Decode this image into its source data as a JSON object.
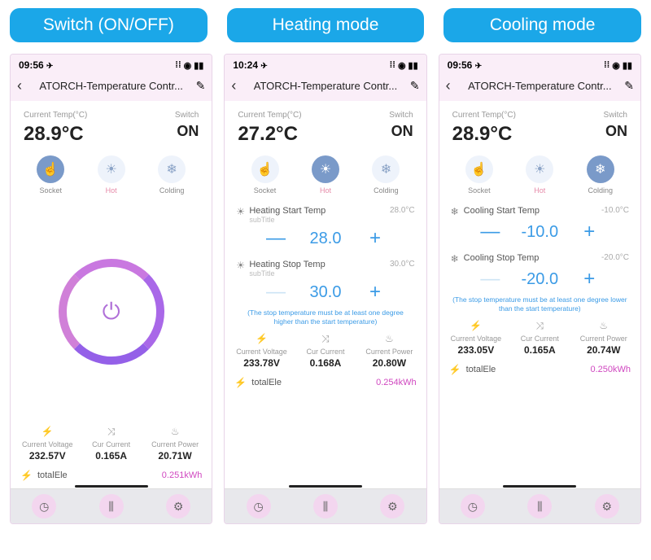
{
  "colors": {
    "tab_bg": "#1ba7e8",
    "accent_blue": "#3b9be6",
    "accent_pink": "#d048c0"
  },
  "tabs": [
    {
      "label": "Switch (ON/OFF)"
    },
    {
      "label": "Heating mode"
    },
    {
      "label": "Cooling mode"
    }
  ],
  "app_title": "ATORCH-Temperature Contr...",
  "phones": [
    {
      "time": "09:56",
      "temp_label": "Current Temp(°C)",
      "temp": "28.9°C",
      "switch_label": "Switch",
      "switch": "ON",
      "modes": {
        "socket": "Socket",
        "hot": "Hot",
        "colding": "Colding",
        "active": "socket"
      },
      "metrics": {
        "voltage_label": "Current Voltage",
        "voltage": "232.57V",
        "current_label": "Cur Current",
        "current": "0.165A",
        "power_label": "Current Power",
        "power": "20.71W"
      },
      "total_label": "totalEle",
      "total": "0.251kWh"
    },
    {
      "time": "10:24",
      "temp_label": "Current Temp(°C)",
      "temp": "27.2°C",
      "switch_label": "Switch",
      "switch": "ON",
      "modes": {
        "socket": "Socket",
        "hot": "Hot",
        "colding": "Colding",
        "active": "hot"
      },
      "settings": [
        {
          "icon": "☀",
          "title": "Heating Start Temp",
          "sub": "subTitle",
          "current": "28.0°C",
          "value": "28.0",
          "minus_disabled": false
        },
        {
          "icon": "☀",
          "title": "Heating Stop Temp",
          "sub": "subTitle",
          "current": "30.0°C",
          "value": "30.0",
          "minus_disabled": true
        }
      ],
      "note": "(The stop temperature must be at least one degree higher than the start temperature)",
      "metrics": {
        "voltage_label": "Current Voltage",
        "voltage": "233.78V",
        "current_label": "Cur Current",
        "current": "0.168A",
        "power_label": "Current Power",
        "power": "20.80W"
      },
      "total_label": "totalEle",
      "total": "0.254kWh"
    },
    {
      "time": "09:56",
      "temp_label": "Current Temp(°C)",
      "temp": "28.9°C",
      "switch_label": "Switch",
      "switch": "ON",
      "modes": {
        "socket": "Socket",
        "hot": "Hot",
        "colding": "Colding",
        "active": "colding"
      },
      "settings": [
        {
          "icon": "❄",
          "title": "Cooling Start Temp",
          "sub": "",
          "current": "-10.0°C",
          "value": "-10.0",
          "minus_disabled": false
        },
        {
          "icon": "❄",
          "title": "Cooling Stop Temp",
          "sub": "",
          "current": "-20.0°C",
          "value": "-20.0",
          "minus_disabled": true
        }
      ],
      "note": "(The stop temperature must be at least one degree lower than the start temperature)",
      "metrics": {
        "voltage_label": "Current Voltage",
        "voltage": "233.05V",
        "current_label": "Cur Current",
        "current": "0.165A",
        "power_label": "Current Power",
        "power": "20.74W"
      },
      "total_label": "totalEle",
      "total": "0.250kWh"
    }
  ]
}
